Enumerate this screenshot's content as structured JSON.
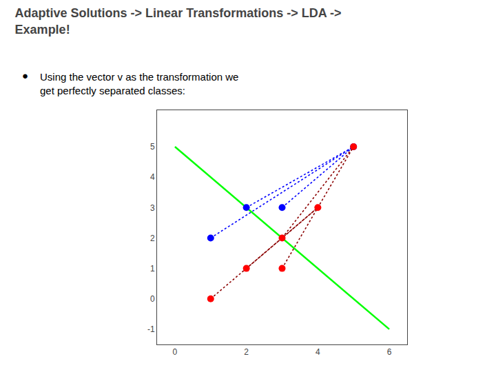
{
  "chart_data": {
    "type": "scatter",
    "title": "Adaptive Solutions -> Linear Transformations -> LDA ->\nExample!",
    "annotations": [
      "●",
      "Using the vector v as the transformation we\nget perfectly separated classes:"
    ],
    "series": [
      {
        "type": "line",
        "color": "lime",
        "line_style": "solid",
        "x": [
          0,
          6
        ],
        "values": [
          5,
          -1
        ]
      },
      {
        "type": "line",
        "color": "blue",
        "line_style": "dotted",
        "x": [
          1,
          5,
          null,
          2,
          5,
          null,
          3,
          5
        ],
        "values": [
          2,
          5,
          null,
          3,
          5,
          null,
          3,
          5
        ]
      },
      {
        "type": "line",
        "color": "darkred",
        "line_style": "dotted",
        "x": [
          1,
          4,
          null,
          2,
          4,
          null,
          3,
          5,
          null,
          3,
          5
        ],
        "values": [
          0,
          3,
          null,
          1,
          3,
          null,
          1,
          5,
          null,
          2,
          5
        ]
      },
      {
        "type": "scatter",
        "color": "blue",
        "marker": "circle",
        "x": [
          1,
          2,
          3,
          5
        ],
        "values": [
          2,
          3,
          3,
          5
        ]
      },
      {
        "type": "scatter",
        "color": "red",
        "marker": "circle",
        "x": [
          1,
          2,
          3,
          3,
          4,
          5
        ],
        "values": [
          0,
          1,
          1,
          2,
          3,
          5
        ]
      }
    ],
    "xlim": [
      -0.5,
      6.5
    ],
    "ylim": [
      -1.5,
      6.2
    ],
    "xticks": [
      0,
      2,
      4,
      6
    ],
    "yticks": [
      -1,
      0,
      1,
      2,
      3,
      4,
      5
    ],
    "grid": false
  }
}
